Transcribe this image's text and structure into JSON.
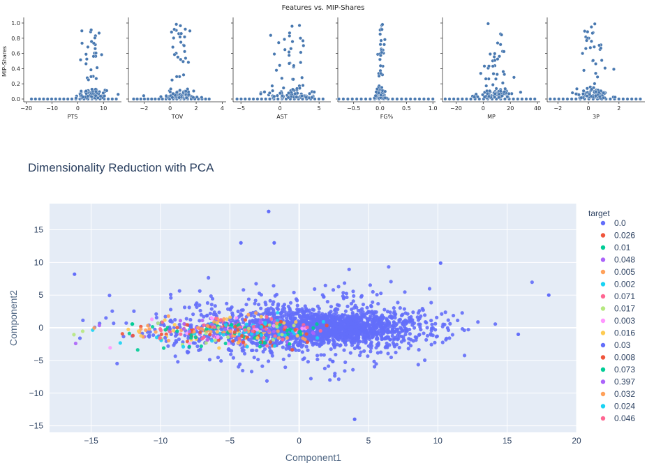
{
  "chart_data": [
    {
      "type": "scatter",
      "title": "Features vs. MIP-Shares",
      "ylabel": "MIP-Shares",
      "ylim": [
        0,
        1
      ],
      "yticks": [
        "0.0",
        "0.2",
        "0.4",
        "0.6",
        "0.8",
        "1.0"
      ],
      "marker_color": "#4878b0",
      "panels": [
        {
          "xlabel": "PTS",
          "xlim": [
            -21,
            17
          ],
          "xticks": [
            -20,
            -10,
            0,
            10
          ],
          "center": 6,
          "spread": 3.5,
          "bulk": [
            -18,
            15
          ]
        },
        {
          "xlabel": "TOV",
          "xlim": [
            -3.2,
            4.3
          ],
          "xticks": [
            -2,
            0,
            2,
            4
          ],
          "center": 0.8,
          "spread": 0.7,
          "bulk": [
            -2.8,
            3.0
          ]
        },
        {
          "xlabel": "AST",
          "xlim": [
            -6,
            6.5
          ],
          "xticks": [
            -5,
            0,
            5
          ],
          "center": 1.5,
          "spread": 1.6,
          "bulk": [
            -5.5,
            5.5
          ]
        },
        {
          "xlabel": "FG%",
          "xlim": [
            -0.8,
            1.05
          ],
          "xticks": [
            "-0.5",
            "0.0",
            "0.5",
            "1.0"
          ],
          "center": 0.02,
          "spread": 0.05,
          "bulk": [
            -0.78,
            1.0
          ]
        },
        {
          "xlabel": "MP",
          "xlim": [
            -30,
            42
          ],
          "xticks": [
            -20,
            0,
            20,
            40
          ],
          "center": 8,
          "spread": 7,
          "bulk": [
            -28,
            38
          ]
        },
        {
          "xlabel": "3P",
          "xlim": [
            -2.7,
            3.7
          ],
          "xticks": [
            -2,
            0,
            2
          ],
          "center": 0.4,
          "spread": 0.7,
          "bulk": [
            -2.5,
            3.4
          ]
        }
      ]
    },
    {
      "type": "scatter",
      "title": "Dimensionality Reduction with PCA",
      "xlabel": "Component1",
      "ylabel": "Component2",
      "xlim": [
        -18,
        20
      ],
      "ylim": [
        -16,
        19
      ],
      "xticks": [
        -15,
        -10,
        -5,
        0,
        5,
        10,
        15,
        20
      ],
      "yticks": [
        -15,
        -10,
        -5,
        0,
        5,
        10,
        15
      ],
      "tick_labels_x": [
        "−15",
        "−10",
        "−5",
        "0",
        "5",
        "10",
        "15",
        "20"
      ],
      "tick_labels_y": [
        "−15",
        "−10",
        "−5",
        "0",
        "5",
        "10",
        "15"
      ],
      "grid": true,
      "legend_title": "target",
      "legend_position": "right",
      "series": [
        {
          "name": "0.0",
          "color": "#636efa"
        },
        {
          "name": "0.026",
          "color": "#EF553B"
        },
        {
          "name": "0.01",
          "color": "#00cc96"
        },
        {
          "name": "0.048",
          "color": "#ab63fa"
        },
        {
          "name": "0.005",
          "color": "#FFA15A"
        },
        {
          "name": "0.002",
          "color": "#19d3f3"
        },
        {
          "name": "0.071",
          "color": "#FF6692"
        },
        {
          "name": "0.017",
          "color": "#B6E880"
        },
        {
          "name": "0.003",
          "color": "#FF97FF"
        },
        {
          "name": "0.016",
          "color": "#FECB52"
        },
        {
          "name": "0.03",
          "color": "#636efa"
        },
        {
          "name": "0.008",
          "color": "#EF553B"
        },
        {
          "name": "0.073",
          "color": "#00cc96"
        },
        {
          "name": "0.397",
          "color": "#ab63fa"
        },
        {
          "name": "0.032",
          "color": "#FFA15A"
        },
        {
          "name": "0.024",
          "color": "#19d3f3"
        },
        {
          "name": "0.046",
          "color": "#FF6692"
        }
      ],
      "outliers": [
        [
          18,
          5
        ],
        [
          15.8,
          -1
        ],
        [
          -16.2,
          8.2
        ],
        [
          -2.2,
          17.8
        ],
        [
          -4.2,
          13
        ],
        [
          -1.8,
          13
        ],
        [
          10.2,
          9.9
        ],
        [
          4,
          -14
        ]
      ]
    }
  ]
}
